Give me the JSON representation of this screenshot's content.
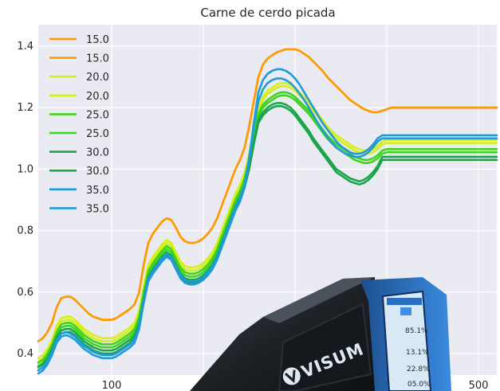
{
  "chart_data": {
    "type": "line",
    "title": "Carne de cerdo picada",
    "xlabel": "",
    "ylabel": "",
    "xlim": [
      20,
      520
    ],
    "ylim": [
      0.33,
      1.47
    ],
    "grid": true,
    "legend_position": "top-left",
    "x_ticks": [
      100,
      500
    ],
    "x_tick_labels": [
      "100",
      "500"
    ],
    "y_ticks": [
      0.4,
      0.6,
      0.8,
      1.0,
      1.2,
      1.4
    ],
    "y_tick_labels": [
      "0.4",
      "0.6",
      "0.8",
      "1.0",
      "1.2",
      "1.4"
    ],
    "x": [
      20,
      25,
      30,
      35,
      40,
      45,
      50,
      55,
      60,
      65,
      70,
      75,
      80,
      85,
      90,
      95,
      100,
      105,
      110,
      115,
      120,
      125,
      130,
      135,
      140,
      145,
      150,
      155,
      160,
      165,
      170,
      175,
      180,
      185,
      190,
      195,
      200,
      205,
      210,
      215,
      220,
      225,
      230,
      235,
      240,
      245,
      250,
      255,
      260,
      265,
      270,
      275,
      280,
      285,
      290,
      295,
      300,
      305,
      310,
      315,
      320,
      325,
      330,
      335,
      340,
      345,
      350,
      355,
      360,
      365,
      370,
      375,
      380,
      385,
      390,
      395,
      400,
      405,
      410,
      415,
      420,
      425,
      430,
      435,
      440,
      445,
      450,
      455,
      460,
      465,
      470,
      475,
      480,
      485,
      490,
      495,
      500,
      505,
      510,
      515,
      520
    ],
    "series": [
      {
        "name": "15.0",
        "color": "#ff9a00",
        "values": [
          0.44,
          0.45,
          0.47,
          0.5,
          0.55,
          0.58,
          0.585,
          0.585,
          0.575,
          0.56,
          0.545,
          0.53,
          0.52,
          0.515,
          0.51,
          0.51,
          0.51,
          0.515,
          0.525,
          0.535,
          0.545,
          0.56,
          0.6,
          0.69,
          0.76,
          0.79,
          0.81,
          0.83,
          0.84,
          0.835,
          0.81,
          0.78,
          0.765,
          0.76,
          0.76,
          0.765,
          0.775,
          0.79,
          0.81,
          0.84,
          0.88,
          0.92,
          0.96,
          1.0,
          1.03,
          1.07,
          1.14,
          1.22,
          1.3,
          1.34,
          1.36,
          1.37,
          1.38,
          1.385,
          1.39,
          1.39,
          1.39,
          1.385,
          1.375,
          1.365,
          1.35,
          1.335,
          1.32,
          1.3,
          1.285,
          1.27,
          1.255,
          1.24,
          1.225,
          1.215,
          1.205,
          1.195,
          1.19,
          1.185,
          1.185,
          1.19,
          1.195,
          1.2,
          1.2,
          1.2,
          1.2,
          1.2,
          1.2,
          1.2,
          1.2,
          1.2,
          1.2,
          1.2,
          1.2,
          1.2,
          1.2,
          1.2,
          1.2,
          1.2,
          1.2,
          1.2,
          1.2,
          1.2,
          1.2,
          1.2,
          1.2
        ]
      },
      {
        "name": "15.0",
        "color": "#ff9a00",
        "values": [
          0.44,
          0.45,
          0.47,
          0.5,
          0.55,
          0.58,
          0.585,
          0.585,
          0.575,
          0.56,
          0.545,
          0.53,
          0.52,
          0.515,
          0.51,
          0.51,
          0.51,
          0.515,
          0.525,
          0.535,
          0.545,
          0.56,
          0.6,
          0.69,
          0.76,
          0.79,
          0.81,
          0.83,
          0.84,
          0.835,
          0.81,
          0.78,
          0.765,
          0.76,
          0.76,
          0.765,
          0.775,
          0.79,
          0.81,
          0.84,
          0.88,
          0.92,
          0.96,
          1.0,
          1.03,
          1.07,
          1.14,
          1.22,
          1.3,
          1.34,
          1.36,
          1.37,
          1.38,
          1.385,
          1.39,
          1.39,
          1.39,
          1.385,
          1.375,
          1.365,
          1.35,
          1.335,
          1.32,
          1.3,
          1.285,
          1.27,
          1.255,
          1.24,
          1.225,
          1.215,
          1.205,
          1.195,
          1.19,
          1.185,
          1.185,
          1.19,
          1.195,
          1.2,
          1.2,
          1.2,
          1.2,
          1.2,
          1.2,
          1.2,
          1.2,
          1.2,
          1.2,
          1.2,
          1.2,
          1.2,
          1.2,
          1.2,
          1.2,
          1.2,
          1.2,
          1.2,
          1.2,
          1.2,
          1.2,
          1.2,
          1.2
        ]
      },
      {
        "name": "20.0",
        "color": "#d4ef1a",
        "values": [
          0.385,
          0.395,
          0.415,
          0.445,
          0.49,
          0.515,
          0.52,
          0.52,
          0.51,
          0.495,
          0.48,
          0.47,
          0.46,
          0.455,
          0.45,
          0.45,
          0.45,
          0.455,
          0.465,
          0.475,
          0.485,
          0.5,
          0.54,
          0.62,
          0.69,
          0.715,
          0.735,
          0.755,
          0.77,
          0.76,
          0.73,
          0.7,
          0.685,
          0.68,
          0.68,
          0.685,
          0.695,
          0.71,
          0.73,
          0.76,
          0.8,
          0.84,
          0.88,
          0.92,
          0.95,
          0.99,
          1.05,
          1.13,
          1.2,
          1.235,
          1.255,
          1.265,
          1.275,
          1.28,
          1.28,
          1.275,
          1.265,
          1.25,
          1.235,
          1.22,
          1.2,
          1.18,
          1.16,
          1.14,
          1.125,
          1.11,
          1.1,
          1.09,
          1.08,
          1.07,
          1.065,
          1.06,
          1.06,
          1.065,
          1.075,
          1.09,
          1.095,
          1.095,
          1.095,
          1.095,
          1.095,
          1.095,
          1.095,
          1.095,
          1.095,
          1.095,
          1.095,
          1.095,
          1.095,
          1.095,
          1.095,
          1.095,
          1.095,
          1.095,
          1.095,
          1.095,
          1.095,
          1.095,
          1.095,
          1.095,
          1.095
        ]
      },
      {
        "name": "20.0",
        "color": "#d4ef1a",
        "values": [
          0.375,
          0.385,
          0.405,
          0.435,
          0.48,
          0.505,
          0.51,
          0.51,
          0.5,
          0.485,
          0.47,
          0.46,
          0.45,
          0.445,
          0.44,
          0.44,
          0.44,
          0.445,
          0.455,
          0.465,
          0.475,
          0.49,
          0.53,
          0.61,
          0.68,
          0.705,
          0.725,
          0.745,
          0.76,
          0.75,
          0.72,
          0.69,
          0.675,
          0.67,
          0.67,
          0.675,
          0.685,
          0.7,
          0.72,
          0.75,
          0.79,
          0.83,
          0.87,
          0.91,
          0.94,
          0.98,
          1.04,
          1.12,
          1.19,
          1.225,
          1.245,
          1.255,
          1.265,
          1.27,
          1.27,
          1.265,
          1.255,
          1.24,
          1.225,
          1.21,
          1.19,
          1.17,
          1.15,
          1.13,
          1.115,
          1.1,
          1.09,
          1.08,
          1.07,
          1.06,
          1.055,
          1.05,
          1.05,
          1.055,
          1.065,
          1.08,
          1.085,
          1.085,
          1.085,
          1.085,
          1.085,
          1.085,
          1.085,
          1.085,
          1.085,
          1.085,
          1.085,
          1.085,
          1.085,
          1.085,
          1.085,
          1.085,
          1.085,
          1.085,
          1.085,
          1.085,
          1.085,
          1.085,
          1.085,
          1.085,
          1.085
        ]
      },
      {
        "name": "25.0",
        "color": "#3fd41c",
        "values": [
          0.37,
          0.38,
          0.4,
          0.43,
          0.47,
          0.495,
          0.5,
          0.5,
          0.49,
          0.475,
          0.46,
          0.45,
          0.44,
          0.435,
          0.43,
          0.43,
          0.43,
          0.435,
          0.445,
          0.455,
          0.465,
          0.48,
          0.52,
          0.6,
          0.67,
          0.695,
          0.715,
          0.735,
          0.75,
          0.74,
          0.71,
          0.68,
          0.665,
          0.66,
          0.66,
          0.665,
          0.675,
          0.69,
          0.71,
          0.74,
          0.78,
          0.82,
          0.86,
          0.9,
          0.93,
          0.97,
          1.03,
          1.11,
          1.18,
          1.21,
          1.225,
          1.235,
          1.245,
          1.25,
          1.25,
          1.245,
          1.235,
          1.22,
          1.205,
          1.19,
          1.17,
          1.15,
          1.13,
          1.11,
          1.095,
          1.08,
          1.07,
          1.06,
          1.05,
          1.04,
          1.035,
          1.03,
          1.03,
          1.035,
          1.045,
          1.06,
          1.065,
          1.065,
          1.065,
          1.065,
          1.065,
          1.065,
          1.065,
          1.065,
          1.065,
          1.065,
          1.065,
          1.065,
          1.065,
          1.065,
          1.065,
          1.065,
          1.065,
          1.065,
          1.065,
          1.065,
          1.065,
          1.065,
          1.065,
          1.065,
          1.065
        ]
      },
      {
        "name": "25.0",
        "color": "#3fd41c",
        "values": [
          0.36,
          0.37,
          0.39,
          0.42,
          0.46,
          0.485,
          0.49,
          0.49,
          0.48,
          0.465,
          0.45,
          0.44,
          0.43,
          0.425,
          0.42,
          0.42,
          0.42,
          0.425,
          0.435,
          0.445,
          0.455,
          0.47,
          0.51,
          0.59,
          0.66,
          0.685,
          0.705,
          0.725,
          0.74,
          0.73,
          0.7,
          0.67,
          0.655,
          0.65,
          0.65,
          0.655,
          0.665,
          0.68,
          0.7,
          0.73,
          0.77,
          0.81,
          0.85,
          0.89,
          0.92,
          0.96,
          1.02,
          1.1,
          1.17,
          1.2,
          1.215,
          1.225,
          1.235,
          1.24,
          1.24,
          1.235,
          1.225,
          1.21,
          1.195,
          1.18,
          1.16,
          1.14,
          1.12,
          1.1,
          1.085,
          1.07,
          1.06,
          1.05,
          1.04,
          1.03,
          1.025,
          1.02,
          1.02,
          1.025,
          1.035,
          1.05,
          1.055,
          1.055,
          1.055,
          1.055,
          1.055,
          1.055,
          1.055,
          1.055,
          1.055,
          1.055,
          1.055,
          1.055,
          1.055,
          1.055,
          1.055,
          1.055,
          1.055,
          1.055,
          1.055,
          1.055,
          1.055,
          1.055,
          1.055,
          1.055,
          1.055
        ]
      },
      {
        "name": "30.0",
        "color": "#1aa54a",
        "values": [
          0.355,
          0.365,
          0.385,
          0.415,
          0.455,
          0.475,
          0.48,
          0.48,
          0.47,
          0.455,
          0.44,
          0.43,
          0.42,
          0.415,
          0.41,
          0.41,
          0.41,
          0.415,
          0.425,
          0.435,
          0.445,
          0.46,
          0.5,
          0.58,
          0.65,
          0.675,
          0.695,
          0.715,
          0.73,
          0.72,
          0.69,
          0.66,
          0.645,
          0.64,
          0.64,
          0.645,
          0.655,
          0.67,
          0.69,
          0.72,
          0.76,
          0.8,
          0.84,
          0.88,
          0.91,
          0.95,
          1.01,
          1.09,
          1.16,
          1.185,
          1.2,
          1.21,
          1.215,
          1.215,
          1.21,
          1.2,
          1.185,
          1.165,
          1.145,
          1.125,
          1.1,
          1.08,
          1.06,
          1.04,
          1.02,
          1.0,
          0.99,
          0.98,
          0.97,
          0.965,
          0.96,
          0.965,
          0.975,
          0.99,
          1.01,
          1.04,
          1.04,
          1.04,
          1.04,
          1.04,
          1.04,
          1.04,
          1.04,
          1.04,
          1.04,
          1.04,
          1.04,
          1.04,
          1.04,
          1.04,
          1.04,
          1.04,
          1.04,
          1.04,
          1.04,
          1.04,
          1.04,
          1.04,
          1.04,
          1.04,
          1.04
        ]
      },
      {
        "name": "30.0",
        "color": "#1aa54a",
        "values": [
          0.345,
          0.355,
          0.375,
          0.405,
          0.445,
          0.465,
          0.47,
          0.47,
          0.46,
          0.445,
          0.43,
          0.42,
          0.41,
          0.405,
          0.4,
          0.4,
          0.4,
          0.405,
          0.415,
          0.425,
          0.435,
          0.45,
          0.49,
          0.57,
          0.64,
          0.665,
          0.685,
          0.705,
          0.72,
          0.71,
          0.68,
          0.65,
          0.635,
          0.63,
          0.63,
          0.635,
          0.645,
          0.66,
          0.68,
          0.71,
          0.75,
          0.79,
          0.83,
          0.87,
          0.9,
          0.94,
          1.0,
          1.08,
          1.15,
          1.175,
          1.19,
          1.2,
          1.205,
          1.205,
          1.2,
          1.19,
          1.175,
          1.155,
          1.135,
          1.115,
          1.09,
          1.07,
          1.05,
          1.03,
          1.01,
          0.99,
          0.98,
          0.97,
          0.96,
          0.955,
          0.95,
          0.955,
          0.965,
          0.98,
          1.0,
          1.03,
          1.03,
          1.03,
          1.03,
          1.03,
          1.03,
          1.03,
          1.03,
          1.03,
          1.03,
          1.03,
          1.03,
          1.03,
          1.03,
          1.03,
          1.03,
          1.03,
          1.03,
          1.03,
          1.03,
          1.03,
          1.03,
          1.03,
          1.03,
          1.03,
          1.03
        ]
      },
      {
        "name": "35.0",
        "color": "#1f9bd8",
        "values": [
          0.345,
          0.355,
          0.375,
          0.405,
          0.445,
          0.465,
          0.47,
          0.465,
          0.455,
          0.44,
          0.425,
          0.415,
          0.405,
          0.4,
          0.395,
          0.395,
          0.395,
          0.4,
          0.41,
          0.42,
          0.43,
          0.445,
          0.49,
          0.575,
          0.645,
          0.67,
          0.69,
          0.71,
          0.725,
          0.715,
          0.685,
          0.655,
          0.64,
          0.635,
          0.635,
          0.64,
          0.65,
          0.665,
          0.685,
          0.715,
          0.755,
          0.795,
          0.835,
          0.875,
          0.905,
          0.95,
          1.04,
          1.14,
          1.22,
          1.26,
          1.28,
          1.29,
          1.295,
          1.295,
          1.29,
          1.28,
          1.265,
          1.245,
          1.225,
          1.2,
          1.175,
          1.15,
          1.125,
          1.105,
          1.085,
          1.07,
          1.06,
          1.05,
          1.045,
          1.04,
          1.04,
          1.045,
          1.055,
          1.07,
          1.09,
          1.1,
          1.1,
          1.1,
          1.1,
          1.1,
          1.1,
          1.1,
          1.1,
          1.1,
          1.1,
          1.1,
          1.1,
          1.1,
          1.1,
          1.1,
          1.1,
          1.1,
          1.1,
          1.1,
          1.1,
          1.1,
          1.1,
          1.1,
          1.1,
          1.1,
          1.1
        ]
      },
      {
        "name": "35.0",
        "color": "#1f9bd8",
        "values": [
          0.335,
          0.345,
          0.365,
          0.395,
          0.435,
          0.455,
          0.46,
          0.455,
          0.445,
          0.43,
          0.415,
          0.405,
          0.395,
          0.39,
          0.385,
          0.385,
          0.385,
          0.39,
          0.4,
          0.41,
          0.42,
          0.435,
          0.48,
          0.565,
          0.635,
          0.66,
          0.68,
          0.7,
          0.715,
          0.705,
          0.675,
          0.645,
          0.63,
          0.625,
          0.625,
          0.63,
          0.64,
          0.655,
          0.675,
          0.705,
          0.745,
          0.785,
          0.825,
          0.865,
          0.895,
          0.94,
          1.03,
          1.15,
          1.25,
          1.29,
          1.31,
          1.32,
          1.325,
          1.325,
          1.32,
          1.31,
          1.295,
          1.275,
          1.25,
          1.225,
          1.2,
          1.175,
          1.15,
          1.13,
          1.11,
          1.09,
          1.075,
          1.065,
          1.055,
          1.05,
          1.05,
          1.055,
          1.065,
          1.08,
          1.1,
          1.11,
          1.11,
          1.11,
          1.11,
          1.11,
          1.11,
          1.11,
          1.11,
          1.11,
          1.11,
          1.11,
          1.11,
          1.11,
          1.11,
          1.11,
          1.11,
          1.11,
          1.11,
          1.11,
          1.11,
          1.11,
          1.11,
          1.11,
          1.11,
          1.11,
          1.11
        ]
      }
    ],
    "colors": {
      "plot_background": "#eaeaf2",
      "grid": "#ffffff"
    }
  },
  "device": {
    "brand": "VISUM",
    "screen_values": [
      "85.1%",
      "13.1%",
      "22.8%",
      "05.0%"
    ],
    "colors": {
      "body": "#1c1f24",
      "accent": "#2a6fc0",
      "screen": "#d9e8f5"
    }
  }
}
